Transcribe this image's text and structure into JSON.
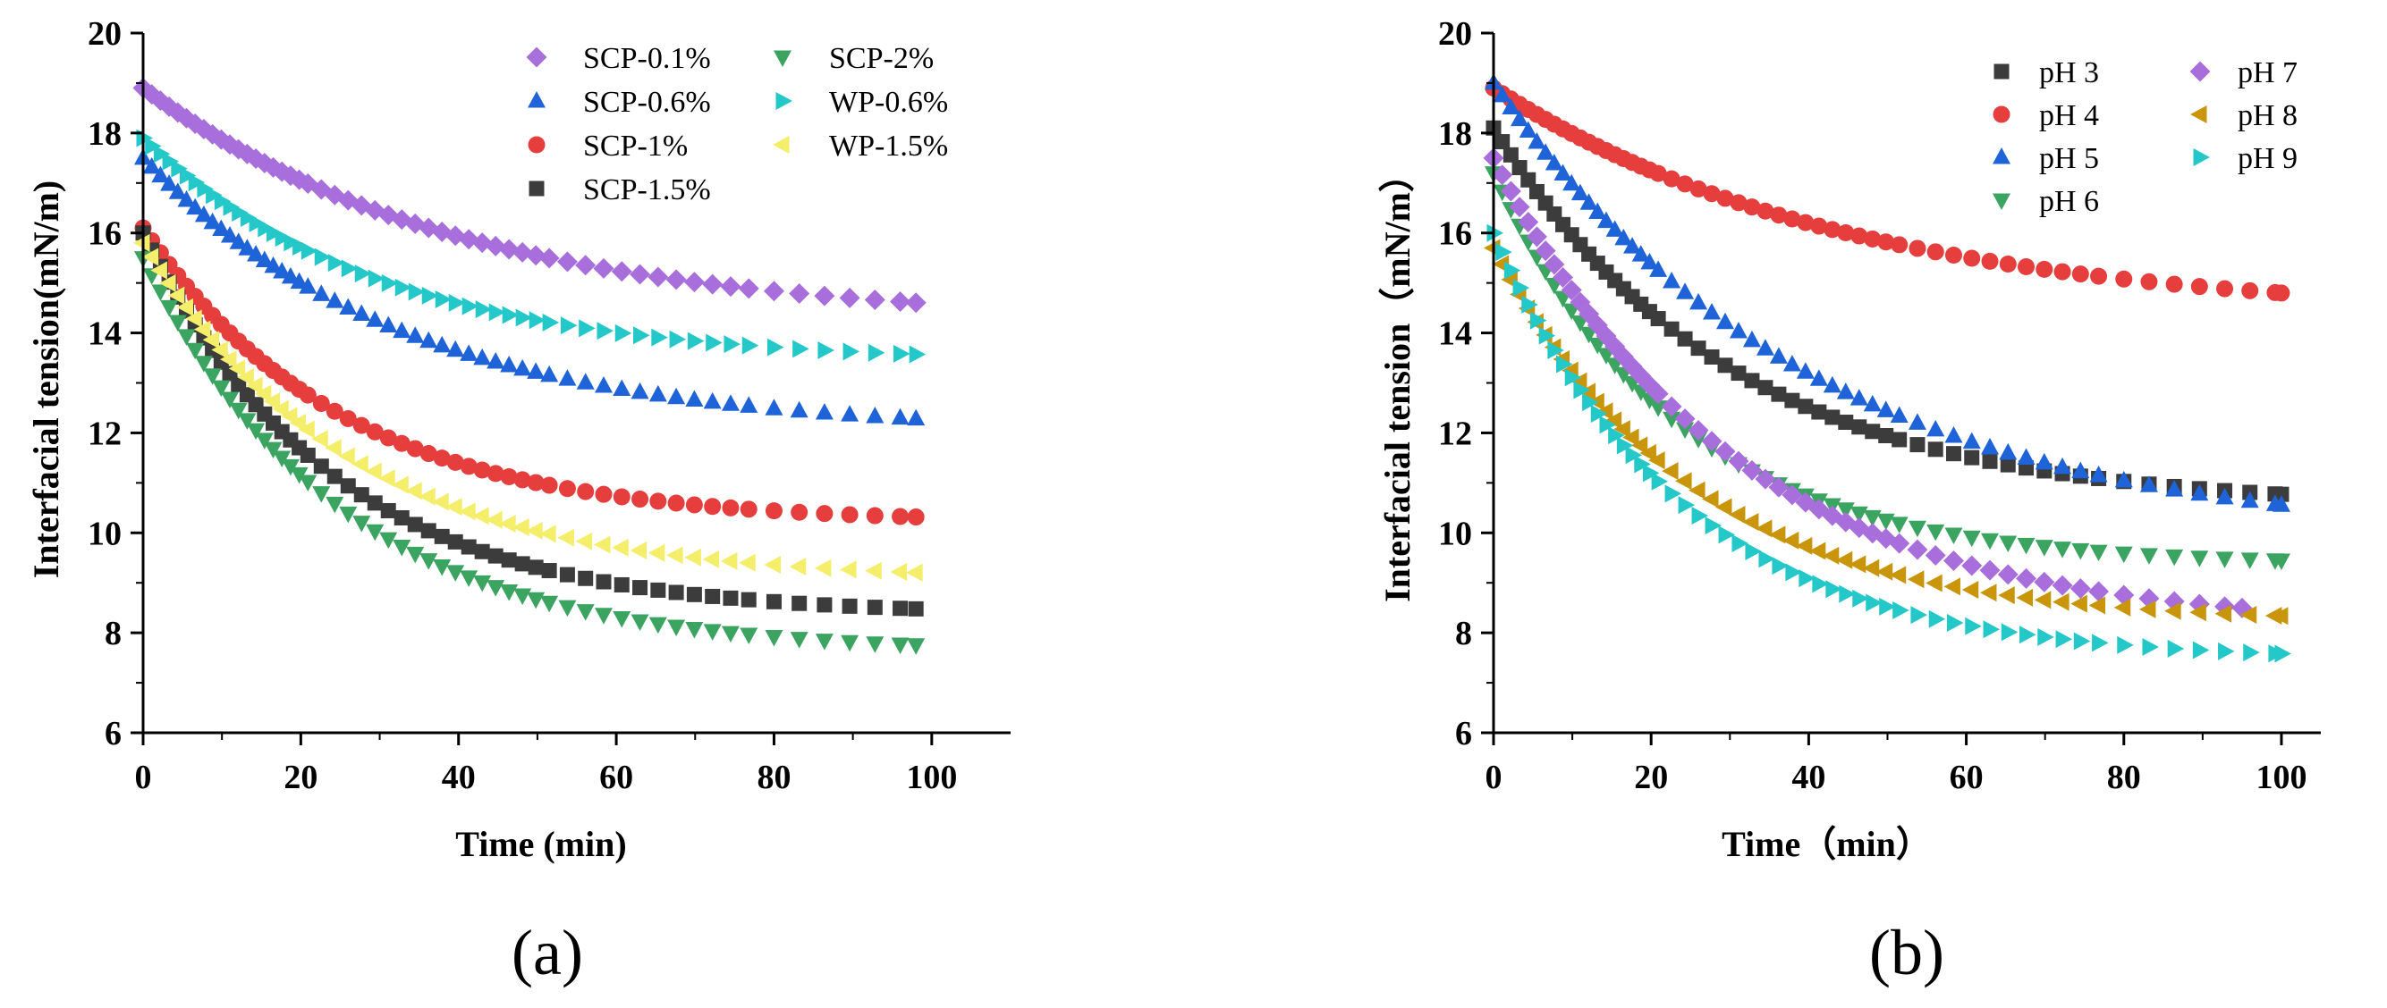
{
  "chart_data": [
    {
      "type": "scatter",
      "panel_label": "(a)",
      "xlabel": "Time (min)",
      "ylabel": "Interfacial tension(mN/m)",
      "xlim": [
        0,
        110
      ],
      "ylim": [
        6,
        20
      ],
      "x_ticks": [
        "0",
        "20",
        "40",
        "60",
        "80",
        "100"
      ],
      "y_ticks": [
        "6",
        "8",
        "10",
        "12",
        "14",
        "16",
        "18",
        "20"
      ],
      "legend": {
        "placement": "top-right",
        "columns": 2
      },
      "series": [
        {
          "name": "SCP-0.1%",
          "marker": "diamond",
          "color": "#a86edb",
          "y0": 18.9,
          "y_end": 14.2,
          "tau": 40,
          "x_end": 98
        },
        {
          "name": "SCP-0.6%",
          "marker": "triangle-up",
          "color": "#1f63d8",
          "y0": 17.5,
          "y_end": 12.0,
          "tau": 33,
          "x_end": 98
        },
        {
          "name": "SCP-1%",
          "marker": "circle",
          "color": "#e63d3d",
          "y0": 16.1,
          "y_end": 10.2,
          "tau": 25,
          "x_end": 98
        },
        {
          "name": "SCP-1.5%",
          "marker": "square",
          "color": "#3c3c3c",
          "y0": 16.0,
          "y_end": 8.35,
          "tau": 24,
          "x_end": 98
        },
        {
          "name": "SCP-2%",
          "marker": "triangle-down",
          "color": "#3aa460",
          "y0": 15.5,
          "y_end": 7.6,
          "tau": 25,
          "x_end": 98
        },
        {
          "name": "WP-0.6%",
          "marker": "triangle-right",
          "color": "#24c8c8",
          "y0": 17.9,
          "y_end": 13.4,
          "tau": 30,
          "x_end": 98
        },
        {
          "name": "WP-1.5%",
          "marker": "triangle-left",
          "color": "#f5ee6a",
          "y0": 15.8,
          "y_end": 9.05,
          "tau": 26,
          "x_end": 98
        }
      ]
    },
    {
      "type": "scatter",
      "panel_label": "(b)",
      "xlabel": "Time（min）",
      "ylabel": "Interfacial tension（mN/m）",
      "xlim": [
        0,
        105
      ],
      "ylim": [
        6,
        20
      ],
      "x_ticks": [
        "0",
        "20",
        "40",
        "60",
        "80",
        "100"
      ],
      "y_ticks": [
        "6",
        "8",
        "10",
        "12",
        "14",
        "16",
        "18",
        "20"
      ],
      "legend": {
        "placement": "top-right",
        "columns": 2
      },
      "series": [
        {
          "name": "pH 3",
          "marker": "square",
          "color": "#3c3c3c",
          "y0": 18.1,
          "y_end": 10.5,
          "tau": 30,
          "x_end": 100
        },
        {
          "name": "pH 4",
          "marker": "circle",
          "color": "#e63d3d",
          "y0": 18.9,
          "y_end": 14.3,
          "tau": 45,
          "x_end": 100
        },
        {
          "name": "pH 5",
          "marker": "triangle-up",
          "color": "#1f63d8",
          "y0": 19.0,
          "y_end": 9.8,
          "tau": 40,
          "x_end": 100
        },
        {
          "name": "pH 6",
          "marker": "triangle-down",
          "color": "#3aa460",
          "y0": 17.2,
          "y_end": 9.35,
          "tau": 23,
          "x_end": 100
        },
        {
          "name": "pH 7",
          "marker": "diamond",
          "color": "#a86edb",
          "y0": 17.5,
          "y_end": 8.1,
          "tau": 30,
          "x_end": 95
        },
        {
          "name": "pH 8",
          "marker": "triangle-left",
          "color": "#c9950a",
          "y0": 15.7,
          "y_end": 8.2,
          "tau": 25,
          "x_end": 100
        },
        {
          "name": "pH 9",
          "marker": "triangle-right",
          "color": "#24c8c8",
          "y0": 16.0,
          "y_end": 7.45,
          "tau": 24,
          "x_end": 100
        }
      ]
    }
  ]
}
